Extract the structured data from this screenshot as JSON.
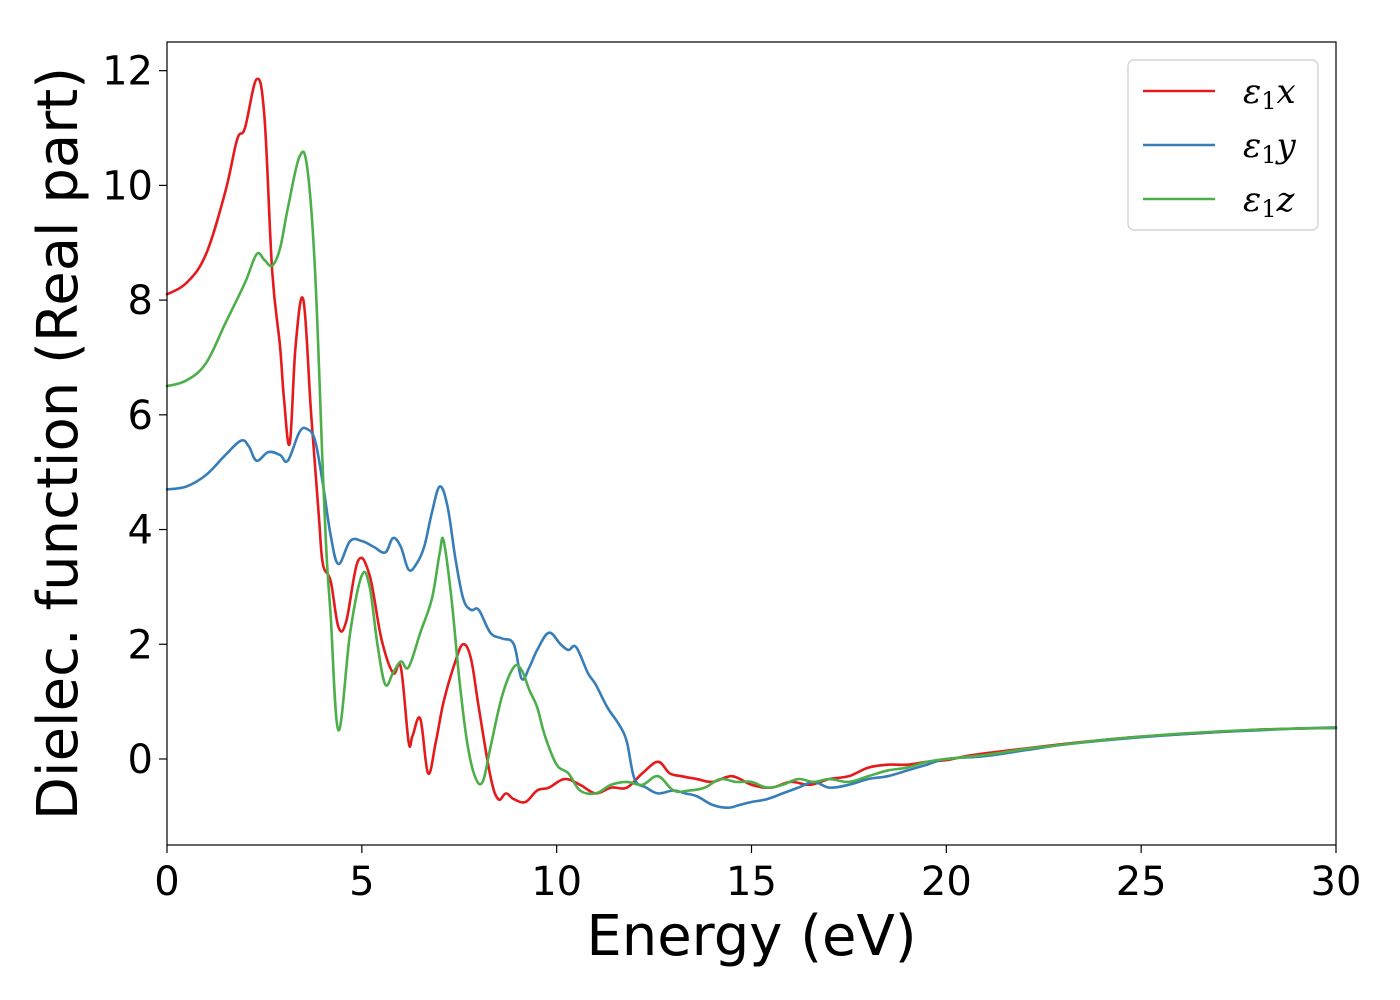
{
  "chart_data": {
    "type": "line",
    "title": "",
    "xlabel": "Energy (eV)",
    "ylabel": "Dielec. function (Real part)",
    "xlim": [
      0,
      30
    ],
    "ylim": [
      -1.5,
      12.5
    ],
    "xticks": [
      0,
      5,
      10,
      15,
      20,
      25,
      30
    ],
    "yticks": [
      0,
      2,
      4,
      6,
      8,
      10,
      12
    ],
    "xtick_labels": [
      "0",
      "5",
      "10",
      "15",
      "20",
      "25",
      "30"
    ],
    "ytick_labels": [
      "0",
      "2",
      "4",
      "6",
      "8",
      "10",
      "12"
    ],
    "grid": false,
    "legend_position": "top-right",
    "series": [
      {
        "name": "ε1x",
        "legend": {
          "base": "ε",
          "sub": "1",
          "var": "x"
        },
        "color": "#e41a1c",
        "x": [
          0,
          0.5,
          1.0,
          1.5,
          1.8,
          2.0,
          2.3,
          2.5,
          2.7,
          2.9,
          3.0,
          3.15,
          3.3,
          3.5,
          3.7,
          3.9,
          4.0,
          4.2,
          4.4,
          4.6,
          4.9,
          5.2,
          5.5,
          5.8,
          6.0,
          6.2,
          6.3,
          6.5,
          6.7,
          6.9,
          7.1,
          7.4,
          7.6,
          7.8,
          8.0,
          8.3,
          8.5,
          8.7,
          8.9,
          9.2,
          9.5,
          9.8,
          10.2,
          10.6,
          11.0,
          11.4,
          11.8,
          12.2,
          12.6,
          12.9,
          13.2,
          13.6,
          14.0,
          14.5,
          15.0,
          15.5,
          16.0,
          16.5,
          17.0,
          17.5,
          18.0,
          18.5,
          19.0,
          19.5,
          20.0,
          20.5,
          21.0,
          22.0,
          23.0,
          24.0,
          25.0,
          26.0,
          27.0,
          28.0,
          29.0,
          30.0
        ],
        "values": [
          8.1,
          8.3,
          8.8,
          9.9,
          10.8,
          11.0,
          11.85,
          11.2,
          8.5,
          7.2,
          6.3,
          5.5,
          7.2,
          8.0,
          6.0,
          4.2,
          3.4,
          3.1,
          2.3,
          2.4,
          3.45,
          3.2,
          2.1,
          1.5,
          1.6,
          0.3,
          0.4,
          0.7,
          -0.25,
          0.3,
          1.0,
          1.7,
          2.0,
          1.75,
          0.9,
          -0.3,
          -0.7,
          -0.6,
          -0.7,
          -0.75,
          -0.55,
          -0.5,
          -0.35,
          -0.45,
          -0.6,
          -0.5,
          -0.5,
          -0.25,
          -0.05,
          -0.25,
          -0.3,
          -0.35,
          -0.4,
          -0.3,
          -0.45,
          -0.5,
          -0.4,
          -0.45,
          -0.35,
          -0.3,
          -0.15,
          -0.1,
          -0.1,
          -0.05,
          -0.02,
          0.05,
          0.1,
          0.18,
          0.26,
          0.33,
          0.39,
          0.43,
          0.47,
          0.51,
          0.53,
          0.54
        ]
      },
      {
        "name": "ε1y",
        "legend": {
          "base": "ε",
          "sub": "1",
          "var": "y"
        },
        "color": "#377eb8",
        "x": [
          0,
          0.5,
          1.0,
          1.5,
          1.9,
          2.1,
          2.3,
          2.6,
          2.9,
          3.1,
          3.4,
          3.6,
          3.8,
          4.0,
          4.2,
          4.4,
          4.7,
          5.0,
          5.3,
          5.6,
          5.8,
          6.0,
          6.2,
          6.4,
          6.6,
          6.8,
          7.0,
          7.2,
          7.4,
          7.6,
          7.8,
          8.0,
          8.3,
          8.6,
          8.9,
          9.1,
          9.3,
          9.5,
          9.8,
          10.1,
          10.3,
          10.5,
          10.8,
          11.0,
          11.3,
          11.6,
          11.8,
          12.0,
          12.3,
          12.6,
          13.0,
          13.3,
          13.6,
          14.0,
          14.4,
          14.7,
          15.0,
          15.4,
          15.8,
          16.2,
          16.6,
          17.0,
          17.5,
          18.0,
          18.5,
          19.0,
          19.5,
          20.0,
          21.0,
          22.0,
          23.0,
          24.0,
          25.0,
          26.0,
          27.0,
          28.0,
          29.0,
          30.0
        ],
        "values": [
          4.7,
          4.75,
          4.95,
          5.3,
          5.55,
          5.45,
          5.2,
          5.35,
          5.3,
          5.2,
          5.7,
          5.75,
          5.55,
          4.8,
          3.9,
          3.4,
          3.8,
          3.8,
          3.7,
          3.6,
          3.85,
          3.7,
          3.3,
          3.4,
          3.7,
          4.3,
          4.75,
          4.4,
          3.5,
          2.8,
          2.6,
          2.6,
          2.2,
          2.1,
          2.0,
          1.4,
          1.6,
          1.9,
          2.2,
          2.0,
          1.9,
          1.95,
          1.5,
          1.3,
          0.9,
          0.6,
          0.3,
          -0.35,
          -0.5,
          -0.6,
          -0.55,
          -0.6,
          -0.65,
          -0.8,
          -0.85,
          -0.8,
          -0.75,
          -0.7,
          -0.6,
          -0.5,
          -0.4,
          -0.5,
          -0.45,
          -0.35,
          -0.3,
          -0.2,
          -0.1,
          0.0,
          0.05,
          0.15,
          0.25,
          0.32,
          0.38,
          0.43,
          0.47,
          0.5,
          0.53,
          0.55
        ]
      },
      {
        "name": "ε1z",
        "legend": {
          "base": "ε",
          "sub": "1",
          "var": "z"
        },
        "color": "#4daf4a",
        "x": [
          0,
          0.5,
          1.0,
          1.5,
          2.0,
          2.3,
          2.5,
          2.7,
          2.9,
          3.1,
          3.4,
          3.6,
          3.8,
          4.0,
          4.1,
          4.2,
          4.4,
          4.7,
          5.0,
          5.2,
          5.4,
          5.6,
          5.8,
          6.0,
          6.2,
          6.5,
          6.8,
          7.0,
          7.1,
          7.3,
          7.5,
          7.7,
          7.9,
          8.1,
          8.3,
          8.6,
          8.9,
          9.1,
          9.3,
          9.5,
          9.7,
          10.0,
          10.3,
          10.6,
          11.0,
          11.4,
          11.8,
          12.2,
          12.6,
          13.0,
          13.4,
          13.8,
          14.2,
          14.6,
          15.0,
          15.4,
          15.8,
          16.2,
          16.6,
          17.0,
          17.5,
          18.0,
          18.5,
          19.0,
          19.5,
          20.0,
          21.0,
          22.0,
          23.0,
          24.0,
          25.0,
          26.0,
          27.0,
          28.0,
          29.0,
          30.0
        ],
        "values": [
          6.5,
          6.6,
          6.9,
          7.6,
          8.3,
          8.8,
          8.7,
          8.6,
          8.9,
          9.6,
          10.5,
          10.3,
          8.5,
          5.0,
          3.5,
          2.5,
          0.5,
          2.2,
          3.2,
          3.0,
          2.0,
          1.3,
          1.5,
          1.7,
          1.6,
          2.2,
          2.8,
          3.6,
          3.8,
          2.8,
          1.4,
          0.3,
          -0.3,
          -0.4,
          0.2,
          1.1,
          1.6,
          1.55,
          1.2,
          0.9,
          0.4,
          -0.1,
          -0.25,
          -0.55,
          -0.6,
          -0.45,
          -0.4,
          -0.45,
          -0.3,
          -0.55,
          -0.55,
          -0.5,
          -0.35,
          -0.4,
          -0.4,
          -0.5,
          -0.45,
          -0.35,
          -0.4,
          -0.35,
          -0.4,
          -0.3,
          -0.2,
          -0.15,
          -0.05,
          0.0,
          0.07,
          0.17,
          0.25,
          0.33,
          0.39,
          0.44,
          0.48,
          0.51,
          0.53,
          0.54
        ]
      }
    ]
  }
}
